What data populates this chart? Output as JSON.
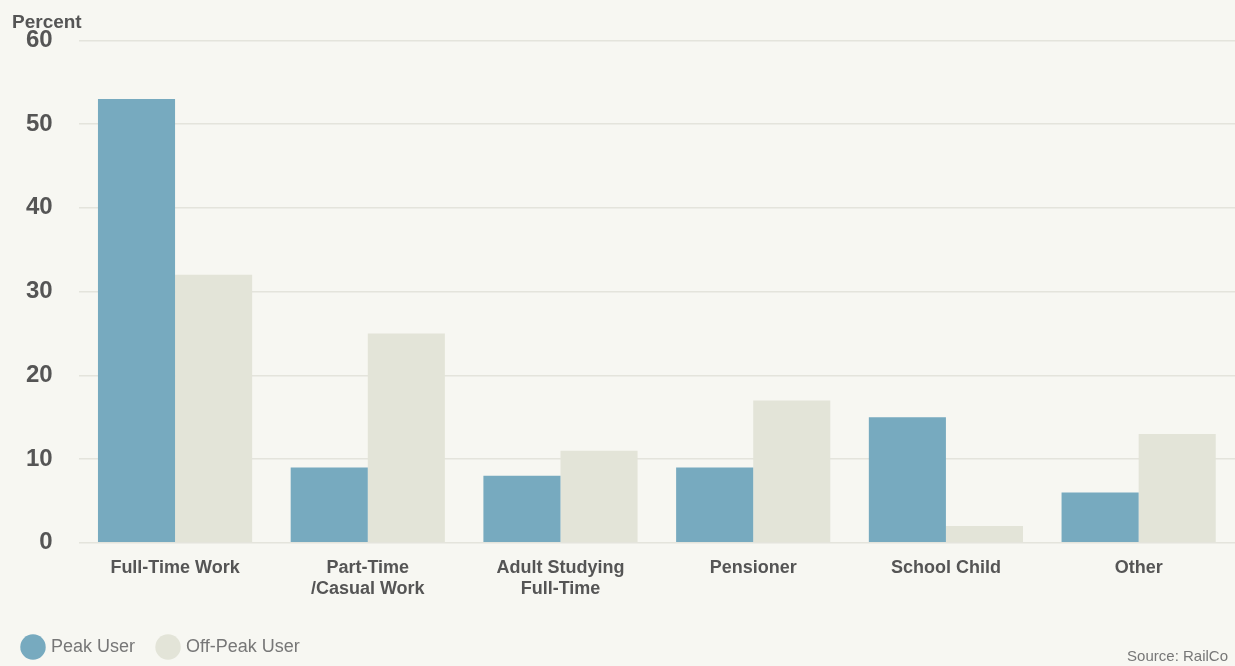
{
  "chart_data": {
    "type": "bar",
    "ylabel": "Percent",
    "categories": [
      "Full-Time Work",
      "Part-Time\n/Casual Work",
      "Adult Studying\nFull-Time",
      "Pensioner",
      "School Child",
      "Other"
    ],
    "series": [
      {
        "name": "Peak User",
        "color": "#77aabf",
        "values": [
          53,
          9,
          8,
          9,
          15,
          6
        ]
      },
      {
        "name": "Off-Peak User",
        "color": "#e3e4d8",
        "values": [
          32,
          25,
          11,
          17,
          2,
          13
        ]
      }
    ],
    "ylim": [
      0,
      60
    ],
    "yticks": [
      0,
      10,
      20,
      30,
      40,
      50,
      60
    ],
    "grid": "y",
    "legend": "bottom left",
    "annotations": [
      "Source: RailCo"
    ]
  }
}
